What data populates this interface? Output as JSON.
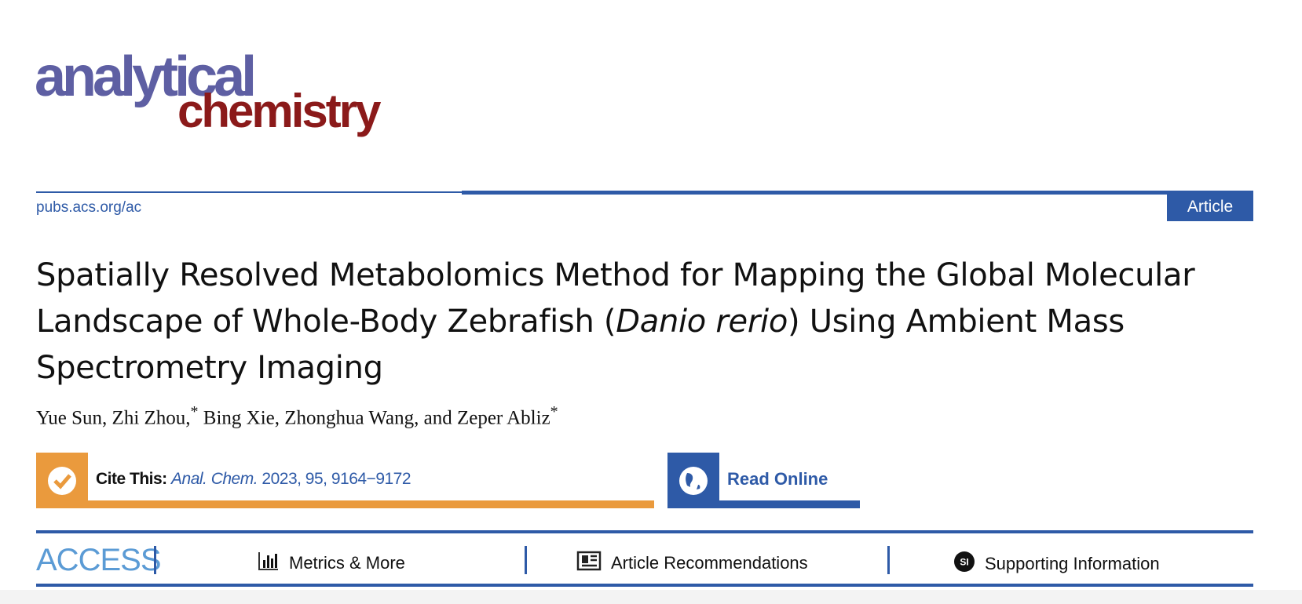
{
  "journal": {
    "logo_line1": "analytical",
    "logo_line2": "chemistry",
    "url": "pubs.acs.org/ac",
    "article_type": "Article"
  },
  "title_parts": {
    "a": "Spatially Resolved Metabolomics Method for Mapping the Global Molecular Landscape of Whole-Body Zebrafish (",
    "italic": "Danio rerio",
    "b": ") Using Ambient Mass Spectrometry Imaging"
  },
  "authors": [
    {
      "name": "Yue Sun,",
      "mark": ""
    },
    {
      "name": " Zhi Zhou,",
      "mark": "*"
    },
    {
      "name": " Bing Xie, Zhonghua Wang, and Zeper Abliz",
      "mark": "*"
    }
  ],
  "cite": {
    "label": "Cite This:",
    "journal": "Anal. Chem.",
    "ref": "2023, 95, 9164−9172",
    "icon": "checkmark-icon"
  },
  "read_online": {
    "label": "Read Online",
    "icon": "globe-icon"
  },
  "access": {
    "label": "ACCESS"
  },
  "tabs": [
    {
      "label": "Metrics & More",
      "icon": "bar-chart-icon"
    },
    {
      "label": "Article Recommendations",
      "icon": "newspaper-icon"
    },
    {
      "label": "Supporting Information",
      "icon": "si-icon"
    }
  ],
  "colors": {
    "brand_blue": "#2e5aa7",
    "logo_purple": "#5e5fa3",
    "logo_red": "#8b1a1a",
    "cite_orange": "#ea9a3d",
    "access_blue": "#5b9bd5"
  }
}
